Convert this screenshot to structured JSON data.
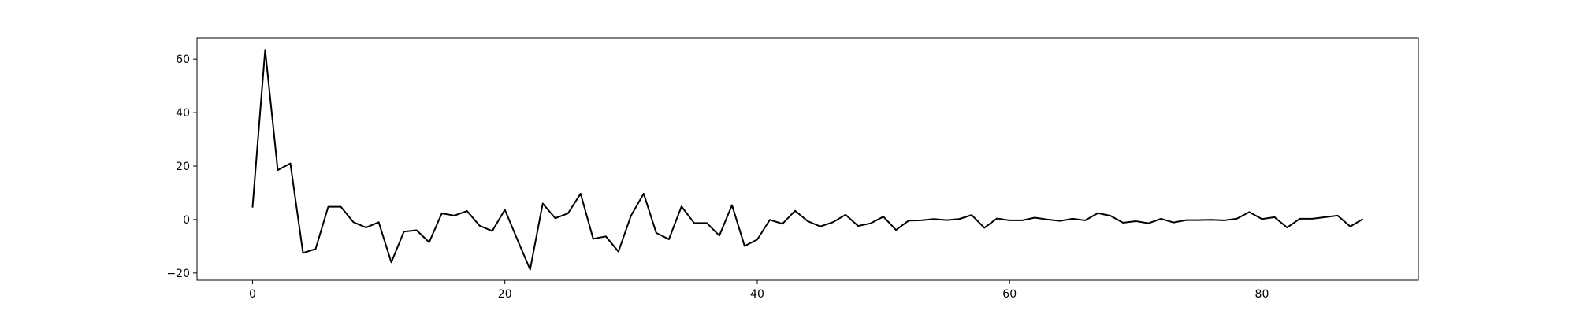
{
  "chart_data": {
    "type": "line",
    "title": "",
    "xlabel": "",
    "ylabel": "",
    "xlim": [
      -4.4,
      92.4
    ],
    "ylim": [
      -22.7,
      68.0
    ],
    "xticks": [
      0,
      20,
      40,
      60,
      80
    ],
    "yticks": [
      -20,
      0,
      20,
      40,
      60
    ],
    "grid": false,
    "line_color": "#000000",
    "series": [
      {
        "values": [
          4.5,
          63.5,
          18.5,
          21.0,
          -12.5,
          -11.0,
          4.8,
          4.8,
          -1.0,
          -3.0,
          -1.0,
          -16.0,
          -4.5,
          -4.0,
          -8.5,
          2.3,
          1.5,
          3.2,
          -2.3,
          -4.3,
          3.7,
          -7.6,
          -18.7,
          6.0,
          0.5,
          2.3,
          9.7,
          -7.2,
          -6.3,
          -12.0,
          1.5,
          9.7,
          -5.0,
          -7.4,
          4.9,
          -1.3,
          -1.3,
          -6.0,
          5.4,
          -9.9,
          -7.5,
          -0.1,
          -1.6,
          3.3,
          -0.6,
          -2.6,
          -1.0,
          1.8,
          -2.4,
          -1.4,
          1.1,
          -3.9,
          -0.4,
          -0.3,
          0.2,
          -0.2,
          0.2,
          1.7,
          -3.1,
          0.4,
          -0.3,
          -0.3,
          0.7,
          0.0,
          -0.5,
          0.3,
          -0.3,
          2.4,
          1.4,
          -1.2,
          -0.6,
          -1.4,
          0.3,
          -1.1,
          -0.2,
          -0.2,
          -0.1,
          -0.3,
          0.3,
          2.8,
          0.2,
          0.9,
          -3.0,
          0.3,
          0.3,
          0.9,
          1.5,
          -2.6,
          0.2
        ]
      }
    ]
  }
}
